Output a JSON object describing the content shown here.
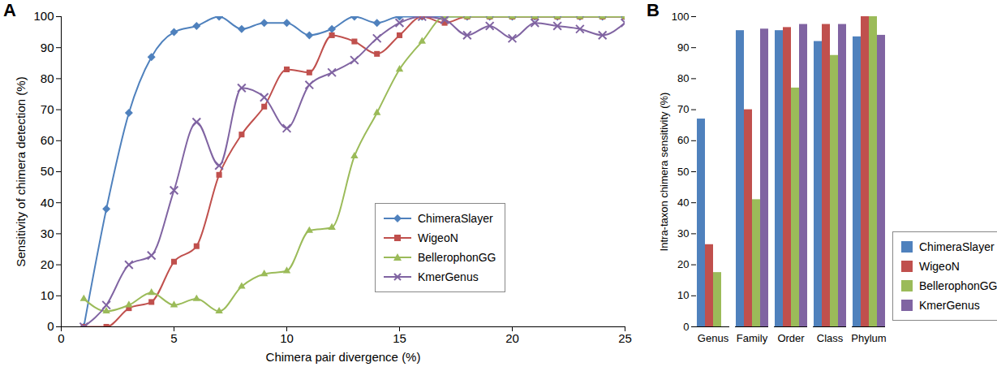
{
  "chart_data": [
    {
      "type": "line",
      "title": "A",
      "x_label": "Chimera pair divergence (%)",
      "y_label": "Sensitivity of chimera detection (%)",
      "x": [
        1,
        2,
        3,
        4,
        5,
        6,
        7,
        8,
        9,
        10,
        11,
        12,
        13,
        14,
        15,
        16,
        17,
        18,
        19,
        20,
        21,
        22,
        23,
        24,
        25
      ],
      "series": [
        {
          "name": "ChimeraSlayer",
          "color": "#4f81bd",
          "marker": "diamond",
          "values": [
            0,
            38,
            69,
            87,
            95,
            97,
            100,
            96,
            98,
            98,
            94,
            96,
            100,
            98,
            100,
            100,
            100,
            100,
            100,
            100,
            100,
            100,
            100,
            100,
            100
          ]
        },
        {
          "name": "WigeoN",
          "color": "#c0504d",
          "marker": "square",
          "values": [
            0,
            0,
            6,
            8,
            21,
            26,
            49,
            62,
            71,
            83,
            82,
            94,
            92,
            88,
            94,
            100,
            98,
            100,
            100,
            100,
            100,
            100,
            100,
            100,
            100
          ]
        },
        {
          "name": "BellerophonGG",
          "color": "#9bbb59",
          "marker": "triangle",
          "values": [
            9,
            5,
            7,
            11,
            7,
            9,
            5,
            13,
            17,
            18,
            31,
            32,
            55,
            69,
            83,
            92,
            100,
            100,
            100,
            100,
            100,
            100,
            100,
            100,
            100
          ]
        },
        {
          "name": "KmerGenus",
          "color": "#8064a2",
          "marker": "x",
          "values": [
            0,
            7,
            20,
            23,
            44,
            66,
            52,
            77,
            74,
            64,
            78,
            82,
            86,
            93,
            98,
            100,
            99,
            94,
            97,
            93,
            98,
            97,
            96,
            94,
            98
          ]
        }
      ],
      "xlim": [
        0,
        25
      ],
      "xticks": [
        0,
        5,
        10,
        15,
        20,
        25
      ],
      "ylim": [
        0,
        100
      ],
      "yticks": [
        0,
        10,
        20,
        30,
        40,
        50,
        60,
        70,
        80,
        90,
        100
      ],
      "grid": false,
      "legend": "lower right"
    },
    {
      "type": "bar",
      "title": "B",
      "y_label": "Intra-taxon chimera sensitivity (%)",
      "categories": [
        "Genus",
        "Family",
        "Order",
        "Class",
        "Phylum"
      ],
      "series": [
        {
          "name": "ChimeraSlayer",
          "color": "#4f81bd",
          "values": [
            67,
            95.5,
            95.5,
            92,
            93.5
          ]
        },
        {
          "name": "WigeoN",
          "color": "#c0504d",
          "values": [
            26.5,
            70,
            96.5,
            97.5,
            100
          ]
        },
        {
          "name": "BellerophonGG",
          "color": "#9bbb59",
          "values": [
            17.5,
            41,
            77,
            87.5,
            100
          ]
        },
        {
          "name": "KmerGenus",
          "color": "#8064a2",
          "values": [
            0,
            96,
            97.5,
            97.5,
            94
          ]
        }
      ],
      "ylim": [
        0,
        100
      ],
      "yticks": [
        0,
        10,
        20,
        30,
        40,
        50,
        60,
        70,
        80,
        90,
        100
      ],
      "grid": false,
      "legend": "right"
    }
  ]
}
